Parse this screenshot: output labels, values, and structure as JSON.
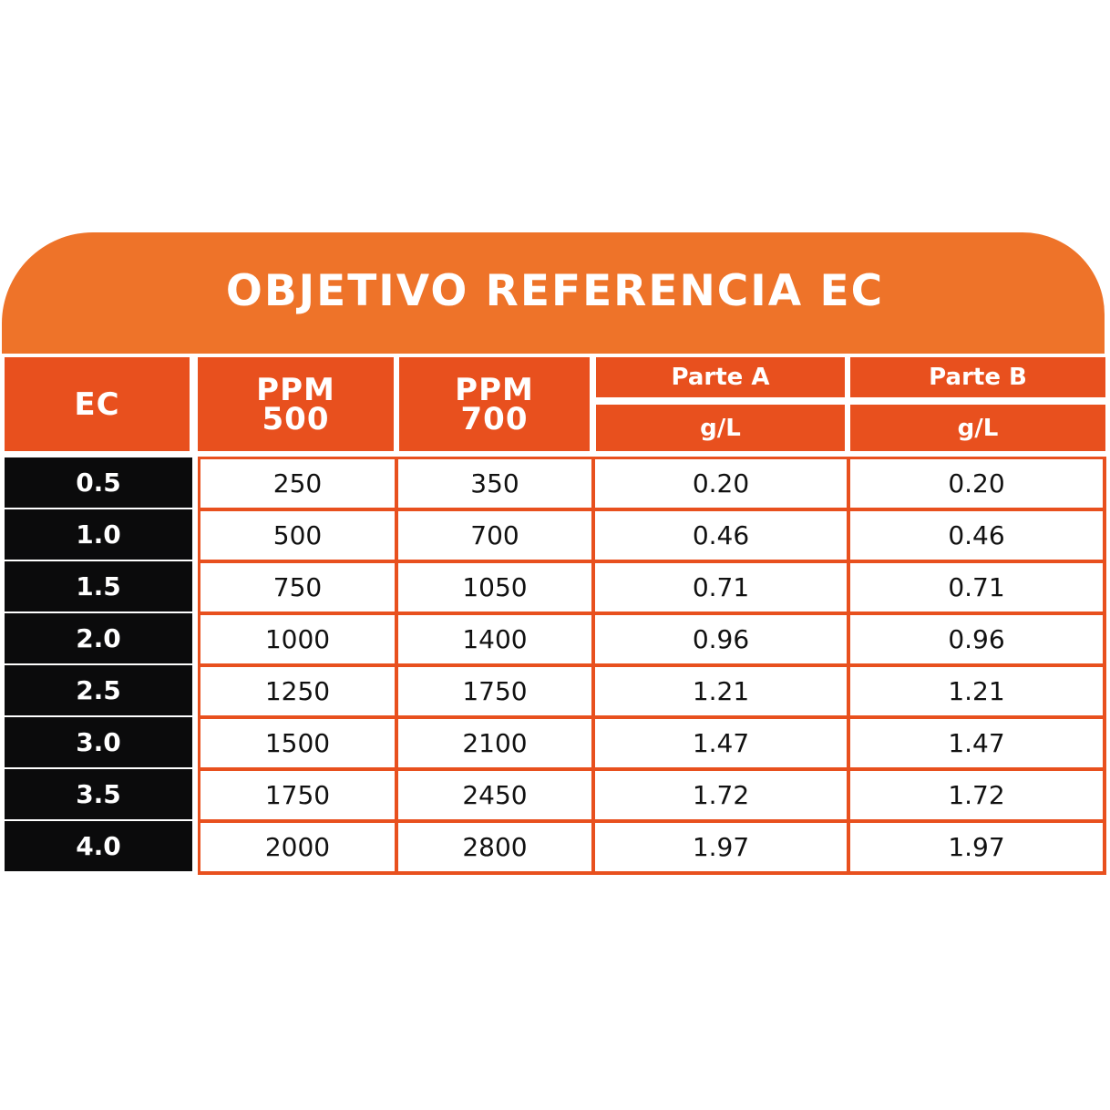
{
  "title": "OBJETIVO REFERENCIA EC",
  "header": {
    "ec": "EC",
    "ppm500": "PPM\n500",
    "ppm700": "PPM\n700",
    "parte_a": "Parte A",
    "parte_b": "Parte B",
    "unit_a": "g/L",
    "unit_b": "g/L"
  },
  "rows": [
    {
      "ec": "0.5",
      "ppm500": "250",
      "ppm700": "350",
      "parte_a": "0.20",
      "parte_b": "0.20"
    },
    {
      "ec": "1.0",
      "ppm500": "500",
      "ppm700": "700",
      "parte_a": "0.46",
      "parte_b": "0.46"
    },
    {
      "ec": "1.5",
      "ppm500": "750",
      "ppm700": "1050",
      "parte_a": "0.71",
      "parte_b": "0.71"
    },
    {
      "ec": "2.0",
      "ppm500": "1000",
      "ppm700": "1400",
      "parte_a": "0.96",
      "parte_b": "0.96"
    },
    {
      "ec": "2.5",
      "ppm500": "1250",
      "ppm700": "1750",
      "parte_a": "1.21",
      "parte_b": "1.21"
    },
    {
      "ec": "3.0",
      "ppm500": "1500",
      "ppm700": "2100",
      "parte_a": "1.47",
      "parte_b": "1.47"
    },
    {
      "ec": "3.5",
      "ppm500": "1750",
      "ppm700": "2450",
      "parte_a": "1.72",
      "parte_b": "1.72"
    },
    {
      "ec": "4.0",
      "ppm500": "2000",
      "ppm700": "2800",
      "parte_a": "1.97",
      "parte_b": "1.97"
    }
  ],
  "colors": {
    "banner": "#ee7329",
    "header": "#e8501e",
    "ec_column": "#0b0b0c",
    "grid_lines": "#e8501e"
  }
}
